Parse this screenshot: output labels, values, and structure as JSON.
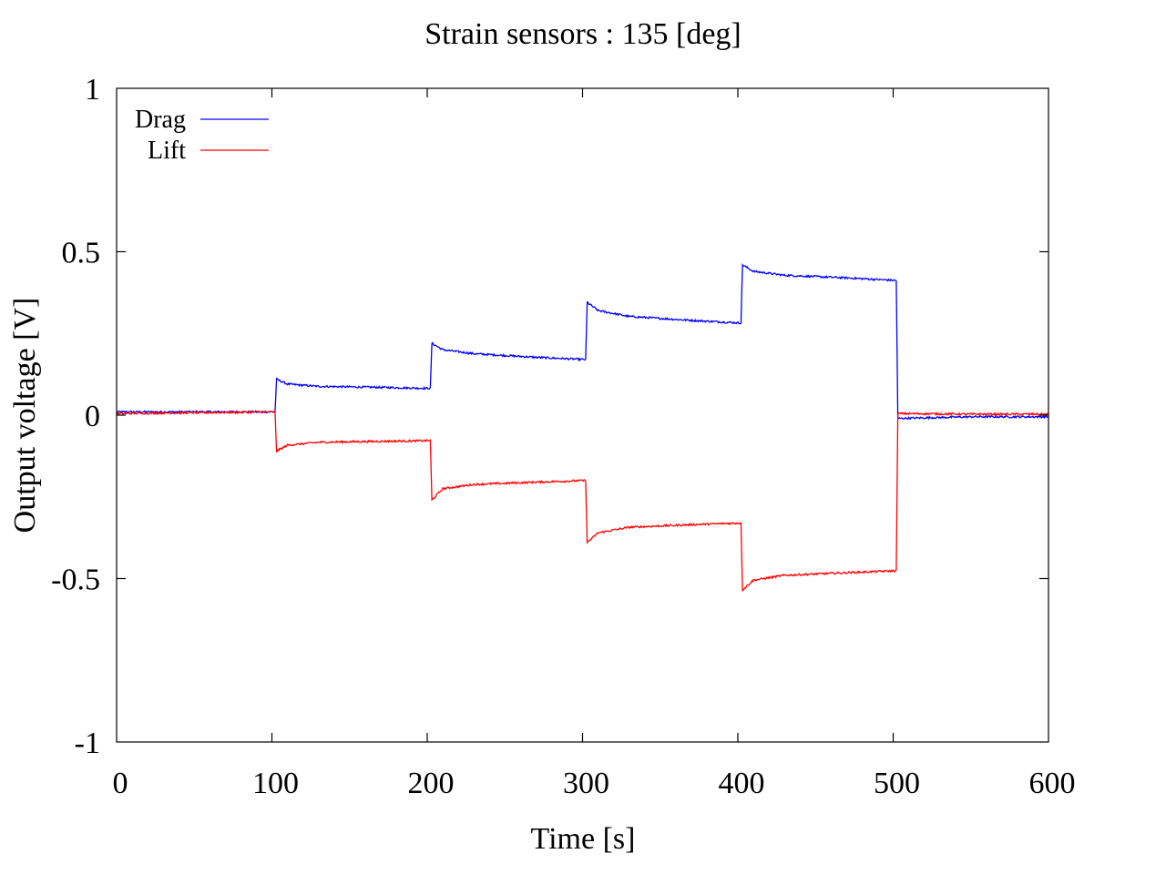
{
  "chart_data": {
    "type": "line",
    "title": "Strain sensors : 135 [deg]",
    "xlabel": "Time [s]",
    "ylabel": "Output voltage [V]",
    "xlim": [
      0,
      600
    ],
    "ylim": [
      -1,
      1
    ],
    "xticks": [
      0,
      100,
      200,
      300,
      400,
      500,
      600
    ],
    "xtick_labels": [
      "0",
      "100",
      "200",
      "300",
      "400",
      "500",
      "600"
    ],
    "yticks": [
      -1,
      -0.5,
      0,
      0.5,
      1
    ],
    "ytick_labels": [
      "-1",
      "-0.5",
      "0",
      "0.5",
      "1"
    ],
    "grid": false,
    "legend_position": "top-left",
    "series": [
      {
        "name": "Drag",
        "color": "#0000ff",
        "points": [
          [
            0,
            0.01
          ],
          [
            102,
            0.01
          ],
          [
            103,
            0.11
          ],
          [
            110,
            0.095
          ],
          [
            130,
            0.088
          ],
          [
            170,
            0.085
          ],
          [
            202,
            0.082
          ],
          [
            203,
            0.22
          ],
          [
            210,
            0.2
          ],
          [
            230,
            0.188
          ],
          [
            270,
            0.177
          ],
          [
            302,
            0.17
          ],
          [
            303,
            0.345
          ],
          [
            310,
            0.32
          ],
          [
            330,
            0.302
          ],
          [
            370,
            0.29
          ],
          [
            402,
            0.282
          ],
          [
            403,
            0.46
          ],
          [
            410,
            0.44
          ],
          [
            430,
            0.428
          ],
          [
            470,
            0.42
          ],
          [
            502,
            0.412
          ],
          [
            503,
            -0.01
          ],
          [
            550,
            -0.005
          ],
          [
            600,
            -0.005
          ]
        ]
      },
      {
        "name": "Lift",
        "color": "#ff0000",
        "points": [
          [
            0,
            0.005
          ],
          [
            102,
            0.01
          ],
          [
            103,
            -0.11
          ],
          [
            110,
            -0.092
          ],
          [
            130,
            -0.083
          ],
          [
            170,
            -0.08
          ],
          [
            202,
            -0.078
          ],
          [
            203,
            -0.26
          ],
          [
            210,
            -0.225
          ],
          [
            230,
            -0.212
          ],
          [
            270,
            -0.205
          ],
          [
            302,
            -0.2
          ],
          [
            303,
            -0.39
          ],
          [
            310,
            -0.36
          ],
          [
            330,
            -0.343
          ],
          [
            370,
            -0.335
          ],
          [
            402,
            -0.33
          ],
          [
            403,
            -0.535
          ],
          [
            410,
            -0.505
          ],
          [
            430,
            -0.49
          ],
          [
            470,
            -0.482
          ],
          [
            502,
            -0.476
          ],
          [
            503,
            0.005
          ],
          [
            550,
            0.003
          ],
          [
            600,
            0.003
          ]
        ]
      }
    ]
  }
}
